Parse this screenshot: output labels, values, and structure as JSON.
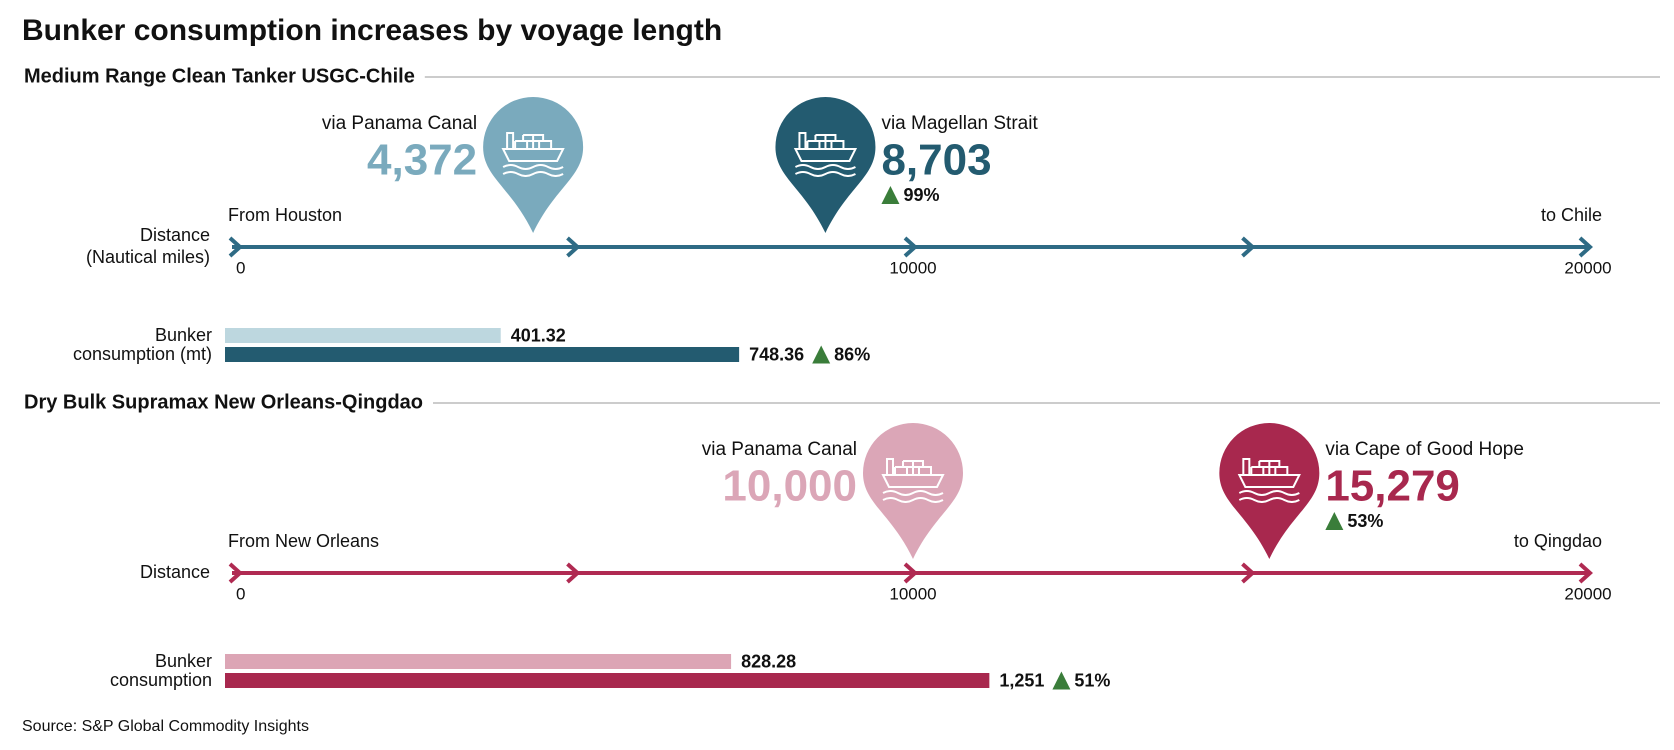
{
  "title": "Bunker consumption increases by voyage length",
  "panels": [
    {
      "title": "Medium Range Clean Tanker USGC-Chile",
      "axis_label": [
        "Distance",
        "(Nautical miles)"
      ],
      "start_label": "From Houston",
      "end_label": "to Chile",
      "axis_color": "#2e6b85",
      "xlim": [
        0,
        20000
      ],
      "xticks": [
        0,
        10000,
        20000
      ],
      "routes": [
        {
          "label": "via Panama Canal",
          "distance": 4372,
          "distance_label": "4,372",
          "color": "#7aaabd"
        },
        {
          "label": "via Magellan Strait",
          "distance": 8703,
          "distance_label": "8,703",
          "color": "#235b70",
          "change": "99%"
        }
      ],
      "bunker_label": [
        "Bunker",
        "consumption (mt)"
      ],
      "bunker": [
        {
          "value": 401.32,
          "color": "#bdd7df"
        },
        {
          "value": 748.36,
          "color": "#235b70",
          "change": "86%"
        }
      ]
    },
    {
      "title": "Dry Bulk Supramax New Orleans-Qingdao",
      "axis_label": [
        "Distance"
      ],
      "start_label": "From New Orleans",
      "end_label": "to Qingdao",
      "axis_color": "#b02a52",
      "xlim": [
        0,
        20000
      ],
      "xticks": [
        0,
        10000,
        20000
      ],
      "routes": [
        {
          "label": "via Panama Canal",
          "distance": 10000,
          "distance_label": "10,000",
          "color": "#dba6b7"
        },
        {
          "label": "via Cape of Good Hope",
          "distance": 15279,
          "distance_label": "15,279",
          "color": "#a8284e",
          "change": "53%"
        }
      ],
      "bunker_label": [
        "Bunker",
        "consumption"
      ],
      "bunker": [
        {
          "value": 828.28,
          "color": "#dca5b5"
        },
        {
          "value": 1251,
          "value_label": "1,251",
          "color": "#a8284e",
          "change": "51%"
        }
      ]
    }
  ],
  "source": "Source: S&P Global Commodity Insights"
}
